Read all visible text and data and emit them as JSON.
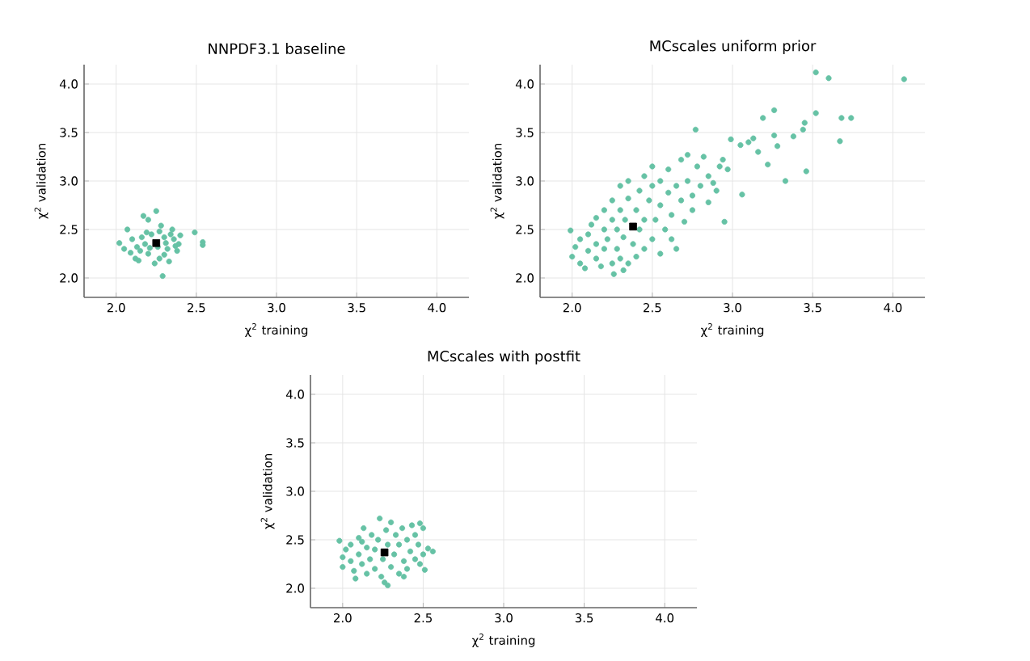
{
  "chart_data": [
    {
      "type": "scatter",
      "title": "NNPDF3.1 baseline",
      "xlabel": "χ$^{2}$ training",
      "ylabel": "χ$^{2}$ validation",
      "xlim": [
        1.8,
        4.2
      ],
      "ylim": [
        1.8,
        4.2
      ],
      "grid": true,
      "xticks": [
        {
          "value": 2,
          "label": "2.0"
        },
        {
          "value": 2.5,
          "label": "2.5"
        },
        {
          "value": 3,
          "label": "3.0"
        },
        {
          "value": 3.5,
          "label": "3.5"
        },
        {
          "value": 4,
          "label": "4.0"
        }
      ],
      "yticks": [
        {
          "value": 2,
          "label": "2.0"
        },
        {
          "value": 2.5,
          "label": "2.5"
        },
        {
          "value": 3,
          "label": "3.0"
        },
        {
          "value": 3.5,
          "label": "3.5"
        },
        {
          "value": 4,
          "label": "4.0"
        }
      ],
      "series": [
        {
          "color": "#66c2a5",
          "marker": "circle",
          "x": [
            2.02,
            2.07,
            2.05,
            2.1,
            2.12,
            2.14,
            2.15,
            2.17,
            2.2,
            2.25,
            2.22,
            2.18,
            2.2,
            2.24,
            2.27,
            2.29,
            2.28,
            2.3,
            2.32,
            2.33,
            2.35,
            2.36,
            2.38,
            2.39,
            2.4,
            2.49,
            2.54,
            2.54,
            2.26,
            2.31,
            2.16,
            2.21,
            2.34,
            2.13,
            2.27,
            2.19,
            2.37,
            2.09,
            2.3
          ],
          "values": [
            2.36,
            2.5,
            2.3,
            2.4,
            2.2,
            2.18,
            2.28,
            2.64,
            2.6,
            2.69,
            2.45,
            2.35,
            2.25,
            2.15,
            2.2,
            2.02,
            2.54,
            2.42,
            2.3,
            2.17,
            2.5,
            2.4,
            2.28,
            2.35,
            2.44,
            2.47,
            2.37,
            2.34,
            2.32,
            2.36,
            2.42,
            2.31,
            2.45,
            2.32,
            2.48,
            2.47,
            2.33,
            2.26,
            2.24
          ]
        },
        {
          "color": "#000000",
          "marker": "square",
          "x": [
            2.25
          ],
          "values": [
            2.36
          ]
        }
      ]
    },
    {
      "type": "scatter",
      "title": "MCscales uniform prior",
      "xlabel": "χ$^{2}$ training",
      "ylabel": "χ$^{2}$ validation",
      "xlim": [
        1.8,
        4.2
      ],
      "ylim": [
        1.8,
        4.2
      ],
      "grid": true,
      "xticks": [
        {
          "value": 2,
          "label": "2.0"
        },
        {
          "value": 2.5,
          "label": "2.5"
        },
        {
          "value": 3,
          "label": "3.0"
        },
        {
          "value": 3.5,
          "label": "3.5"
        },
        {
          "value": 4,
          "label": "4.0"
        }
      ],
      "yticks": [
        {
          "value": 2,
          "label": "2.0"
        },
        {
          "value": 2.5,
          "label": "2.5"
        },
        {
          "value": 3,
          "label": "3.0"
        },
        {
          "value": 3.5,
          "label": "3.5"
        },
        {
          "value": 4,
          "label": "4.0"
        }
      ],
      "series": [
        {
          "color": "#66c2a5",
          "marker": "circle",
          "x": [
            1.99,
            2.77,
            3.52,
            3.6,
            4.07,
            3.26,
            3.19,
            3.45,
            3.44,
            3.52,
            3.68,
            3.74,
            3.67,
            3.38,
            3.26,
            3.28,
            2.99,
            3.05,
            3.1,
            3.13,
            3.16,
            3.22,
            3.33,
            3.46,
            3.06,
            2.95,
            2.26,
            2.32,
            2.88,
            2.94,
            2.97,
            2.0,
            2.02,
            2.05,
            2.05,
            2.08,
            2.1,
            2.1,
            2.12,
            2.15,
            2.15,
            2.15,
            2.18,
            2.2,
            2.2,
            2.2,
            2.22,
            2.25,
            2.25,
            2.25,
            2.28,
            2.28,
            2.3,
            2.3,
            2.3,
            2.32,
            2.33,
            2.35,
            2.35,
            2.35,
            2.38,
            2.4,
            2.4,
            2.42,
            2.42,
            2.45,
            2.45,
            2.45,
            2.48,
            2.5,
            2.5,
            2.5,
            2.52,
            2.55,
            2.55,
            2.55,
            2.58,
            2.6,
            2.6,
            2.62,
            2.62,
            2.65,
            2.65,
            2.68,
            2.68,
            2.7,
            2.72,
            2.72,
            2.75,
            2.75,
            2.78,
            2.8,
            2.82,
            2.85,
            2.85,
            2.9,
            2.92
          ],
          "values": [
            2.49,
            3.53,
            4.12,
            4.06,
            4.05,
            3.73,
            3.65,
            3.6,
            3.53,
            3.7,
            3.65,
            3.65,
            3.41,
            3.46,
            3.47,
            3.36,
            3.43,
            3.37,
            3.4,
            3.44,
            3.3,
            3.17,
            3.0,
            3.1,
            2.86,
            2.58,
            2.04,
            2.08,
            2.98,
            3.22,
            3.12,
            2.22,
            2.32,
            2.4,
            2.15,
            2.1,
            2.28,
            2.45,
            2.55,
            2.2,
            2.35,
            2.62,
            2.12,
            2.3,
            2.5,
            2.7,
            2.4,
            2.15,
            2.6,
            2.8,
            2.3,
            2.5,
            2.2,
            2.7,
            2.95,
            2.42,
            2.6,
            2.15,
            3.0,
            2.82,
            2.35,
            2.7,
            2.22,
            2.5,
            2.9,
            2.6,
            3.05,
            2.3,
            2.8,
            2.4,
            2.95,
            3.15,
            2.6,
            2.25,
            2.75,
            3.0,
            2.5,
            2.88,
            3.12,
            2.65,
            2.4,
            2.95,
            2.3,
            2.8,
            3.22,
            2.58,
            3.0,
            3.27,
            2.85,
            2.7,
            3.15,
            2.95,
            3.25,
            2.78,
            3.05,
            2.9,
            3.15
          ]
        },
        {
          "color": "#000000",
          "marker": "square",
          "x": [
            2.38
          ],
          "values": [
            2.53
          ]
        }
      ]
    },
    {
      "type": "scatter",
      "title": "MCscales with postfit",
      "xlabel": "χ$^{2}$ training",
      "ylabel": "χ$^{2}$ validation",
      "xlim": [
        1.8,
        4.2
      ],
      "ylim": [
        1.8,
        4.2
      ],
      "grid": true,
      "xticks": [
        {
          "value": 2,
          "label": "2.0"
        },
        {
          "value": 2.5,
          "label": "2.5"
        },
        {
          "value": 3,
          "label": "3.0"
        },
        {
          "value": 3.5,
          "label": "3.5"
        },
        {
          "value": 4,
          "label": "4.0"
        }
      ],
      "yticks": [
        {
          "value": 2,
          "label": "2.0"
        },
        {
          "value": 2.5,
          "label": "2.5"
        },
        {
          "value": 3,
          "label": "3.0"
        },
        {
          "value": 3.5,
          "label": "3.5"
        },
        {
          "value": 4,
          "label": "4.0"
        }
      ],
      "series": [
        {
          "color": "#66c2a5",
          "marker": "circle",
          "x": [
            1.98,
            2.0,
            2.0,
            2.02,
            2.05,
            2.05,
            2.07,
            2.08,
            2.1,
            2.1,
            2.12,
            2.13,
            2.15,
            2.15,
            2.17,
            2.18,
            2.2,
            2.2,
            2.22,
            2.23,
            2.24,
            2.25,
            2.26,
            2.27,
            2.28,
            2.28,
            2.3,
            2.3,
            2.32,
            2.33,
            2.35,
            2.35,
            2.37,
            2.38,
            2.4,
            2.4,
            2.42,
            2.43,
            2.45,
            2.45,
            2.47,
            2.48,
            2.5,
            2.5,
            2.51,
            2.53,
            2.56,
            2.48,
            2.12,
            2.38
          ],
          "values": [
            2.49,
            2.32,
            2.22,
            2.4,
            2.28,
            2.45,
            2.18,
            2.1,
            2.35,
            2.52,
            2.25,
            2.62,
            2.42,
            2.15,
            2.3,
            2.55,
            2.2,
            2.4,
            2.5,
            2.72,
            2.12,
            2.3,
            2.06,
            2.6,
            2.03,
            2.45,
            2.22,
            2.68,
            2.35,
            2.55,
            2.15,
            2.45,
            2.62,
            2.28,
            2.5,
            2.2,
            2.38,
            2.65,
            2.3,
            2.55,
            2.45,
            2.67,
            2.35,
            2.62,
            2.19,
            2.41,
            2.38,
            2.25,
            2.48,
            2.12
          ]
        },
        {
          "color": "#000000",
          "marker": "square",
          "x": [
            2.26
          ],
          "values": [
            2.37
          ]
        }
      ]
    }
  ]
}
